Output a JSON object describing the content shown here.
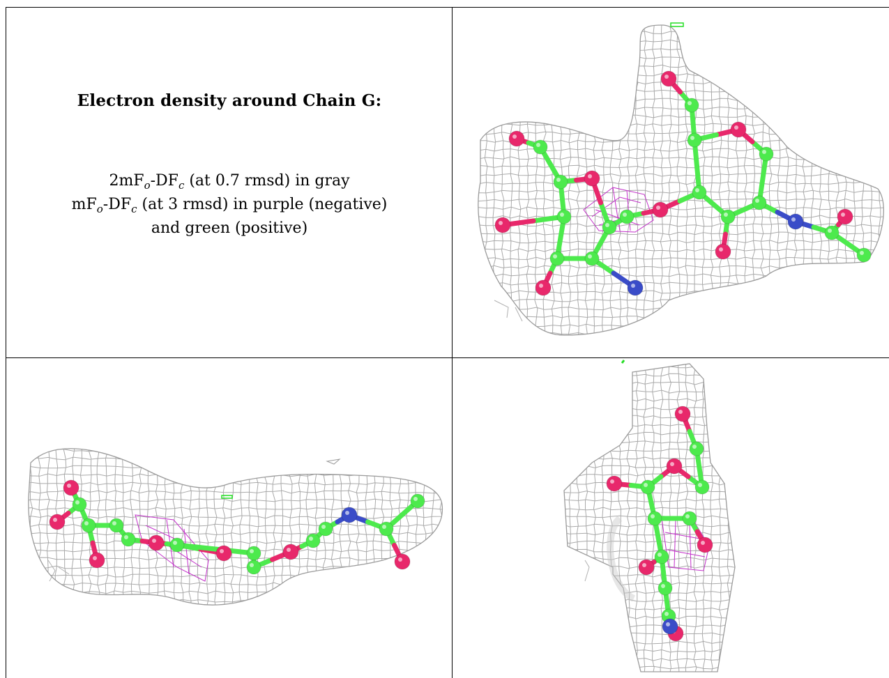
{
  "caption": {
    "title": "Electron density around Chain G:",
    "line1": {
      "prefix": "2mF",
      "sub1": "o",
      "mid": "-DF",
      "sub2": "c",
      "suffix": " (at 0.7 rmsd) in gray"
    },
    "line2": {
      "prefix": "mF",
      "sub1": "o",
      "mid": "-DF",
      "sub2": "c",
      "suffix": " (at 3 rmsd) in purple (negative)"
    },
    "line3": "and green (positive)"
  },
  "colors": {
    "mesh_gray": "#a9a9a9",
    "carbon_green": "#4dea4d",
    "oxygen_red": "#e8286b",
    "nitrogen_blue": "#3a4cc8",
    "negative_purple": "#c22ec9",
    "positive_green": "#22dd22"
  },
  "panels": [
    {
      "name": "view-top-right",
      "description_icon": "molecule-density-view"
    },
    {
      "name": "view-bottom-left",
      "description_icon": "molecule-density-view"
    },
    {
      "name": "view-bottom-right",
      "description_icon": "molecule-density-view"
    }
  ]
}
